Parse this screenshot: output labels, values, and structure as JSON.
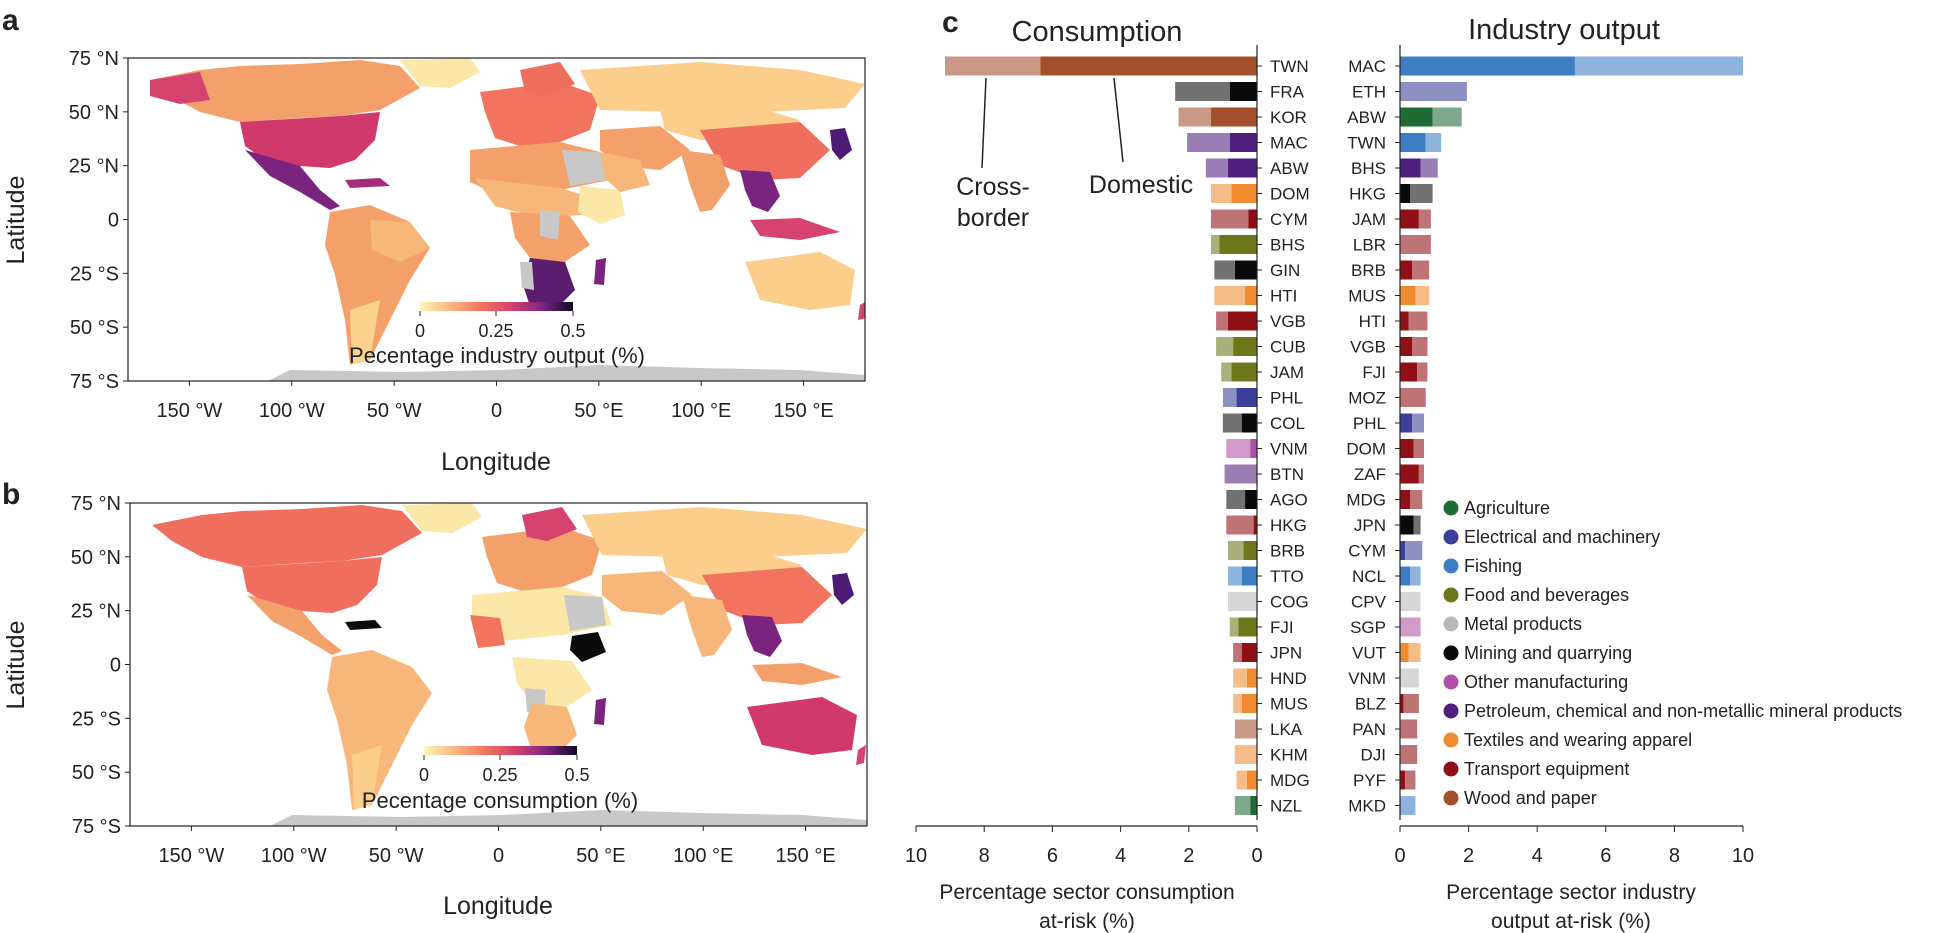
{
  "colors": {
    "Agriculture": "#1f6b35",
    "Electrical and machinery": "#3b3f97",
    "Fishing": "#3d7dc4",
    "Food and beverages": "#6d7719",
    "Metal products": "#b9b9b9",
    "Mining and quarrying": "#0a0a0a",
    "Other manufacturing": "#b14fa6",
    "Petroleum, chemical and non-metallic mineral products": "#4f1f7d",
    "Textiles and wearing apparel": "#f08b30",
    "Transport equipment": "#8f0f14",
    "Wood and paper": "#a34f2c",
    "map_ocean": "#ffffff",
    "map_nodata": "#c8c8c8"
  },
  "panel_a": {
    "letter": "a",
    "xlabel": "Longitude",
    "ylabel": "Latitude",
    "xticks": [
      "150 °W",
      "100 °W",
      "50 °W",
      "0",
      "50 °E",
      "100 °E",
      "150 °E"
    ],
    "yticks": [
      "75 °N",
      "50 °N",
      "25 °N",
      "0",
      "25 °S",
      "50 °S",
      "75 °S"
    ],
    "colorbar": {
      "label": "Pecentage industry output (%)",
      "ticks": [
        "0",
        "0.25",
        "0.5"
      ],
      "range": [
        0,
        0.5
      ]
    }
  },
  "panel_b": {
    "letter": "b",
    "xlabel": "Longitude",
    "ylabel": "Latitude",
    "xticks": [
      "150 °W",
      "100 °W",
      "50 °W",
      "0",
      "50 °E",
      "100 °E",
      "150 °E"
    ],
    "yticks": [
      "75 °N",
      "50 °N",
      "25 °N",
      "0",
      "25 °S",
      "50 °S",
      "75 °S"
    ],
    "colorbar": {
      "label": "Pecentage consumption (%)",
      "ticks": [
        "0",
        "0.25",
        "0.5"
      ],
      "range": [
        0,
        0.5
      ]
    }
  },
  "chart_data": [
    {
      "type": "map",
      "panel": "a",
      "title": "",
      "xlabel": "Longitude",
      "ylabel": "Latitude",
      "xlim": [
        -180,
        180
      ],
      "ylim": [
        -75,
        75
      ],
      "colorbar_label": "Pecentage industry output (%)",
      "colorbar_range": [
        0,
        0.5
      ],
      "colormap": "magma_r"
    },
    {
      "type": "map",
      "panel": "b",
      "title": "",
      "xlabel": "Longitude",
      "ylabel": "Latitude",
      "xlim": [
        -180,
        180
      ],
      "ylim": [
        -75,
        75
      ],
      "colorbar_label": "Pecentage consumption (%)",
      "colorbar_range": [
        0,
        0.5
      ],
      "colormap": "magma_r"
    },
    {
      "type": "bar",
      "panel": "c",
      "orientation": "horizontal-reversed",
      "title": "Consumption",
      "xlabel": "Percentage sector consumption at-risk (%)",
      "xlabel_lines": [
        "Percentage sector consumption",
        "at-risk (%)"
      ],
      "xlim": [
        0,
        10
      ],
      "xticks": [
        "10",
        "8",
        "6",
        "4",
        "2",
        "0"
      ],
      "annotations": {
        "cross_border": [
          "Cross-",
          "border"
        ],
        "domestic": "Domestic"
      },
      "segments": [
        "Domestic",
        "Cross-border"
      ],
      "bars": [
        {
          "country": "TWN",
          "sector": "Wood and paper",
          "domestic": 6.35,
          "cross": 2.8
        },
        {
          "country": "FRA",
          "sector": "Mining and quarrying",
          "domestic": 0.8,
          "cross": 1.6
        },
        {
          "country": "KOR",
          "sector": "Wood and paper",
          "domestic": 1.35,
          "cross": 0.95
        },
        {
          "country": "MAC",
          "sector": "Petroleum, chemical and non-metallic mineral products",
          "domestic": 0.8,
          "cross": 1.25
        },
        {
          "country": "ABW",
          "sector": "Petroleum, chemical and non-metallic mineral products",
          "domestic": 0.85,
          "cross": 0.65
        },
        {
          "country": "DOM",
          "sector": "Textiles and wearing apparel",
          "domestic": 0.75,
          "cross": 0.6
        },
        {
          "country": "CYM",
          "sector": "Transport equipment",
          "domestic": 0.25,
          "cross": 1.1
        },
        {
          "country": "BHS",
          "sector": "Food and beverages",
          "domestic": 1.1,
          "cross": 0.25
        },
        {
          "country": "GIN",
          "sector": "Mining and quarrying",
          "domestic": 0.65,
          "cross": 0.6
        },
        {
          "country": "HTI",
          "sector": "Textiles and wearing apparel",
          "domestic": 0.35,
          "cross": 0.9
        },
        {
          "country": "VGB",
          "sector": "Transport equipment",
          "domestic": 0.85,
          "cross": 0.35
        },
        {
          "country": "CUB",
          "sector": "Food and beverages",
          "domestic": 0.7,
          "cross": 0.5
        },
        {
          "country": "JAM",
          "sector": "Food and beverages",
          "domestic": 0.75,
          "cross": 0.3
        },
        {
          "country": "PHL",
          "sector": "Electrical and machinery",
          "domestic": 0.6,
          "cross": 0.4
        },
        {
          "country": "COL",
          "sector": "Mining and quarrying",
          "domestic": 0.45,
          "cross": 0.55
        },
        {
          "country": "VNM",
          "sector": "Other manufacturing",
          "domestic": 0.2,
          "cross": 0.7
        },
        {
          "country": "BTN",
          "sector": "Petroleum, chemical and non-metallic mineral products",
          "domestic": 0.0,
          "cross": 0.95
        },
        {
          "country": "AGO",
          "sector": "Mining and quarrying",
          "domestic": 0.35,
          "cross": 0.55
        },
        {
          "country": "HKG",
          "sector": "Transport equipment",
          "domestic": 0.1,
          "cross": 0.8
        },
        {
          "country": "BRB",
          "sector": "Food and beverages",
          "domestic": 0.4,
          "cross": 0.45
        },
        {
          "country": "TTO",
          "sector": "Fishing",
          "domestic": 0.45,
          "cross": 0.4
        },
        {
          "country": "COG",
          "sector": "Metal products",
          "domestic": 0.0,
          "cross": 0.85
        },
        {
          "country": "FJI",
          "sector": "Food and beverages",
          "domestic": 0.55,
          "cross": 0.25
        },
        {
          "country": "JPN",
          "sector": "Transport equipment",
          "domestic": 0.45,
          "cross": 0.25
        },
        {
          "country": "HND",
          "sector": "Textiles and wearing apparel",
          "domestic": 0.3,
          "cross": 0.4
        },
        {
          "country": "MUS",
          "sector": "Textiles and wearing apparel",
          "domestic": 0.45,
          "cross": 0.25
        },
        {
          "country": "LKA",
          "sector": "Wood and paper",
          "domestic": 0.0,
          "cross": 0.65
        },
        {
          "country": "KHM",
          "sector": "Textiles and wearing apparel",
          "domestic": 0.0,
          "cross": 0.65
        },
        {
          "country": "MDG",
          "sector": "Textiles and wearing apparel",
          "domestic": 0.3,
          "cross": 0.3
        },
        {
          "country": "NZL",
          "sector": "Agriculture",
          "domestic": 0.2,
          "cross": 0.45
        }
      ]
    },
    {
      "type": "bar",
      "panel": "c",
      "orientation": "horizontal",
      "title": "Industry output",
      "xlabel": "Percentage sector industry output at-risk (%)",
      "xlabel_lines": [
        "Percentage sector industry",
        "output at-risk (%)"
      ],
      "xlim": [
        0,
        10
      ],
      "xticks": [
        "0",
        "2",
        "4",
        "6",
        "8",
        "10"
      ],
      "segments": [
        "Domestic",
        "Cross-border"
      ],
      "bars": [
        {
          "country": "MAC",
          "sector": "Fishing",
          "domestic": 5.1,
          "cross": 4.9
        },
        {
          "country": "ETH",
          "sector": "Electrical and machinery",
          "domestic": 0.0,
          "cross": 1.95
        },
        {
          "country": "ABW",
          "sector": "Agriculture",
          "domestic": 0.95,
          "cross": 0.85
        },
        {
          "country": "TWN",
          "sector": "Fishing",
          "domestic": 0.75,
          "cross": 0.45
        },
        {
          "country": "BHS",
          "sector": "Petroleum, chemical and non-metallic mineral products",
          "domestic": 0.6,
          "cross": 0.5
        },
        {
          "country": "HKG",
          "sector": "Mining and quarrying",
          "domestic": 0.3,
          "cross": 0.65
        },
        {
          "country": "JAM",
          "sector": "Transport equipment",
          "domestic": 0.55,
          "cross": 0.35
        },
        {
          "country": "LBR",
          "sector": "Transport equipment",
          "domestic": 0.0,
          "cross": 0.9
        },
        {
          "country": "BRB",
          "sector": "Transport equipment",
          "domestic": 0.35,
          "cross": 0.5
        },
        {
          "country": "MUS",
          "sector": "Textiles and wearing apparel",
          "domestic": 0.45,
          "cross": 0.4
        },
        {
          "country": "HTI",
          "sector": "Transport equipment",
          "domestic": 0.25,
          "cross": 0.55
        },
        {
          "country": "VGB",
          "sector": "Transport equipment",
          "domestic": 0.35,
          "cross": 0.45
        },
        {
          "country": "FJI",
          "sector": "Transport equipment",
          "domestic": 0.5,
          "cross": 0.3
        },
        {
          "country": "MOZ",
          "sector": "Transport equipment",
          "domestic": 0.0,
          "cross": 0.75
        },
        {
          "country": "PHL",
          "sector": "Electrical and machinery",
          "domestic": 0.35,
          "cross": 0.35
        },
        {
          "country": "DOM",
          "sector": "Transport equipment",
          "domestic": 0.4,
          "cross": 0.3
        },
        {
          "country": "ZAF",
          "sector": "Transport equipment",
          "domestic": 0.55,
          "cross": 0.15
        },
        {
          "country": "MDG",
          "sector": "Transport equipment",
          "domestic": 0.3,
          "cross": 0.35
        },
        {
          "country": "JPN",
          "sector": "Mining and quarrying",
          "domestic": 0.4,
          "cross": 0.2
        },
        {
          "country": "CYM",
          "sector": "Electrical and machinery",
          "domestic": 0.15,
          "cross": 0.5
        },
        {
          "country": "NCL",
          "sector": "Fishing",
          "domestic": 0.3,
          "cross": 0.3
        },
        {
          "country": "CPV",
          "sector": "Metal products",
          "domestic": 0.0,
          "cross": 0.6
        },
        {
          "country": "SGP",
          "sector": "Other manufacturing",
          "domestic": 0.0,
          "cross": 0.6
        },
        {
          "country": "VUT",
          "sector": "Textiles and wearing apparel",
          "domestic": 0.25,
          "cross": 0.35
        },
        {
          "country": "VNM",
          "sector": "Metal products",
          "domestic": 0.0,
          "cross": 0.55
        },
        {
          "country": "BLZ",
          "sector": "Transport equipment",
          "domestic": 0.1,
          "cross": 0.45
        },
        {
          "country": "PAN",
          "sector": "Transport equipment",
          "domestic": 0.0,
          "cross": 0.5
        },
        {
          "country": "DJI",
          "sector": "Transport equipment",
          "domestic": 0.0,
          "cross": 0.5
        },
        {
          "country": "PYF",
          "sector": "Transport equipment",
          "domestic": 0.15,
          "cross": 0.3
        },
        {
          "country": "MKD",
          "sector": "Fishing",
          "domestic": 0.0,
          "cross": 0.45
        }
      ]
    }
  ],
  "panel_c": {
    "letter": "c",
    "legend": [
      "Agriculture",
      "Electrical and machinery",
      "Fishing",
      "Food and beverages",
      "Metal products",
      "Mining and quarrying",
      "Other manufacturing",
      "Petroleum, chemical and non-metallic mineral products",
      "Textiles and wearing apparel",
      "Transport equipment",
      "Wood and paper"
    ]
  }
}
